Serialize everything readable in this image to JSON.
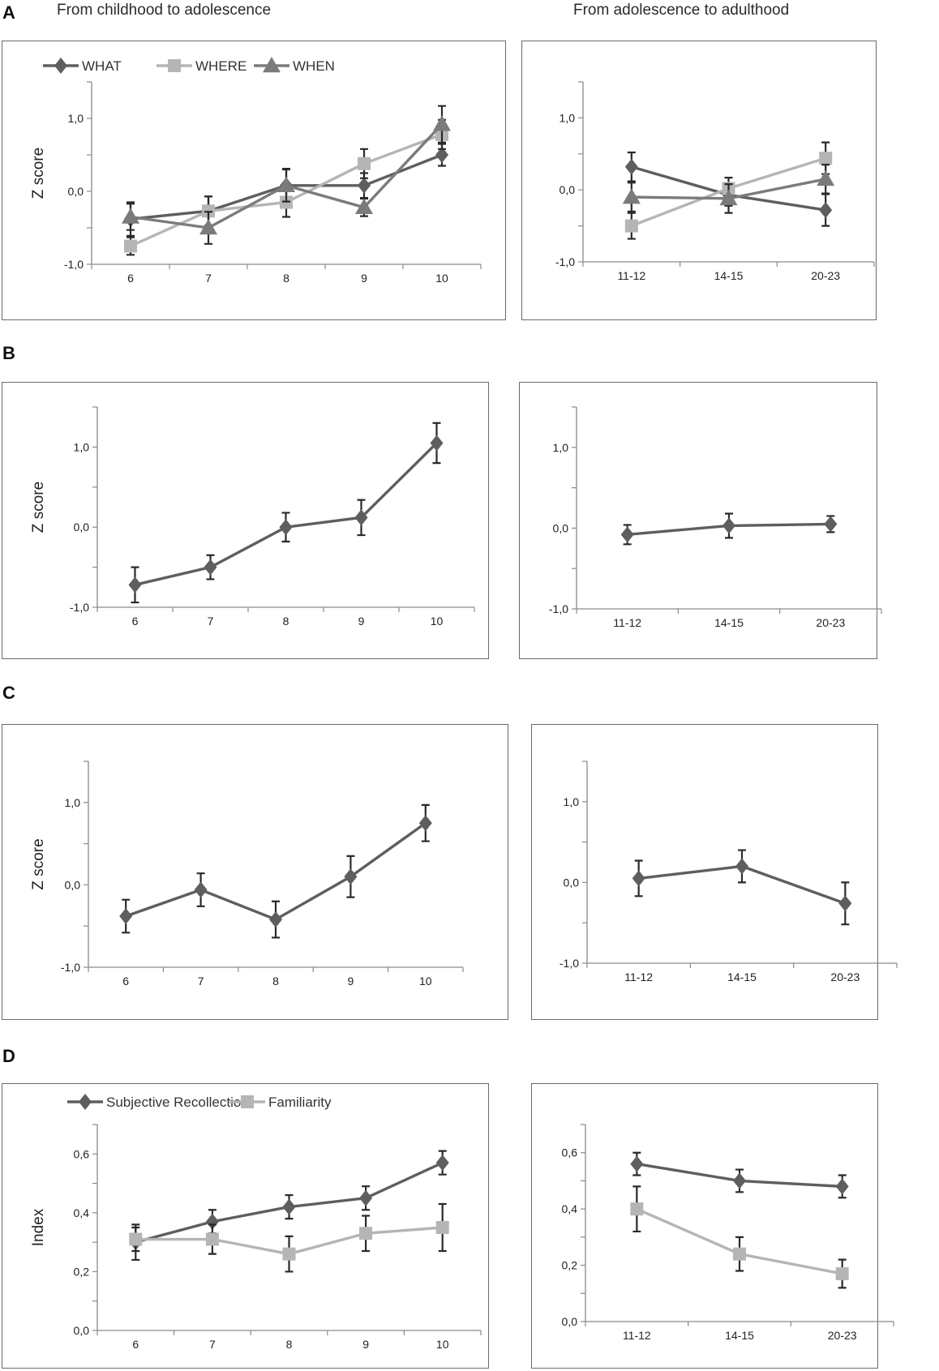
{
  "header": {
    "left_title": "From childhood to adolescence",
    "right_title": "From adolescence to adulthood"
  },
  "sections": {
    "a": "A",
    "b": "B",
    "c": "C",
    "d": "D"
  },
  "colors": {
    "dark": "#5e5e5e",
    "light": "#b5b5b5",
    "mid": "#7b7b7b",
    "axis": "#8a8a8a",
    "border": "#6a6a6a"
  },
  "chart_data": [
    {
      "id": "A-left",
      "type": "line",
      "ylabel": "Z score",
      "categories": [
        "6",
        "7",
        "8",
        "9",
        "10"
      ],
      "ylim": [
        -1.0,
        1.5
      ],
      "yticks": [
        {
          "v": -1.0,
          "label": "-1,0"
        },
        {
          "v": 0.0,
          "label": "0,0"
        },
        {
          "v": 1.0,
          "label": "1,0"
        }
      ],
      "legend": true,
      "series": [
        {
          "name": "WHAT",
          "marker": "diamond",
          "color": "#5e5e5e",
          "values": [
            -0.38,
            -0.27,
            0.08,
            0.08,
            0.5
          ],
          "err": [
            0.23,
            0.2,
            0.23,
            0.17,
            0.15
          ]
        },
        {
          "name": "WHERE",
          "marker": "square",
          "color": "#b5b5b5",
          "values": [
            -0.75,
            -0.27,
            -0.15,
            0.38,
            0.78
          ],
          "err": [
            0.12,
            0.2,
            0.2,
            0.2,
            0.2
          ]
        },
        {
          "name": "WHEN",
          "marker": "triangle",
          "color": "#7b7b7b",
          "values": [
            -0.35,
            -0.5,
            0.08,
            -0.22,
            0.92
          ],
          "err": [
            0.18,
            0.22,
            0.22,
            0.12,
            0.25
          ]
        }
      ]
    },
    {
      "id": "A-right",
      "type": "line",
      "ylabel": "",
      "categories": [
        "11-12",
        "14-15",
        "20-23"
      ],
      "ylim": [
        -1.0,
        1.5
      ],
      "yticks": [
        {
          "v": -1.0,
          "label": "-1,0"
        },
        {
          "v": 0.0,
          "label": "0,0"
        },
        {
          "v": 1.0,
          "label": "1,0"
        }
      ],
      "legend": false,
      "series": [
        {
          "name": "WHAT",
          "marker": "diamond",
          "color": "#5e5e5e",
          "values": [
            0.32,
            -0.07,
            -0.28
          ],
          "err": [
            0.2,
            0.15,
            0.22
          ]
        },
        {
          "name": "WHERE",
          "marker": "square",
          "color": "#b5b5b5",
          "values": [
            -0.5,
            0.02,
            0.44
          ],
          "err": [
            0.18,
            0.15,
            0.22
          ]
        },
        {
          "name": "WHEN",
          "marker": "triangle",
          "color": "#7b7b7b",
          "values": [
            -0.1,
            -0.12,
            0.15
          ],
          "err": [
            0.2,
            0.2,
            0.2
          ]
        }
      ]
    },
    {
      "id": "B-left",
      "type": "line",
      "ylabel": "Z score",
      "categories": [
        "6",
        "7",
        "8",
        "9",
        "10"
      ],
      "ylim": [
        -1.0,
        1.5
      ],
      "yticks": [
        {
          "v": -1.0,
          "label": "-1,0"
        },
        {
          "v": 0.0,
          "label": "0,0"
        },
        {
          "v": 1.0,
          "label": "1,0"
        }
      ],
      "legend": false,
      "series": [
        {
          "name": "B",
          "marker": "diamond",
          "color": "#5e5e5e",
          "values": [
            -0.72,
            -0.5,
            0.0,
            0.12,
            1.05
          ],
          "err": [
            0.22,
            0.15,
            0.18,
            0.22,
            0.25
          ]
        }
      ]
    },
    {
      "id": "B-right",
      "type": "line",
      "ylabel": "",
      "categories": [
        "11-12",
        "14-15",
        "20-23"
      ],
      "ylim": [
        -1.0,
        1.5
      ],
      "yticks": [
        {
          "v": -1.0,
          "label": "-1,0"
        },
        {
          "v": 0.0,
          "label": "0,0"
        },
        {
          "v": 1.0,
          "label": "1,0"
        }
      ],
      "legend": false,
      "series": [
        {
          "name": "B",
          "marker": "diamond",
          "color": "#5e5e5e",
          "values": [
            -0.08,
            0.03,
            0.05
          ],
          "err": [
            0.12,
            0.15,
            0.1
          ]
        }
      ]
    },
    {
      "id": "C-left",
      "type": "line",
      "ylabel": "Z score",
      "categories": [
        "6",
        "7",
        "8",
        "9",
        "10"
      ],
      "ylim": [
        -1.0,
        1.5
      ],
      "yticks": [
        {
          "v": -1.0,
          "label": "-1,0"
        },
        {
          "v": 0.0,
          "label": "0,0"
        },
        {
          "v": 1.0,
          "label": "1,0"
        }
      ],
      "legend": false,
      "series": [
        {
          "name": "C",
          "marker": "diamond",
          "color": "#5e5e5e",
          "values": [
            -0.38,
            -0.06,
            -0.42,
            0.1,
            0.75
          ],
          "err": [
            0.2,
            0.2,
            0.22,
            0.25,
            0.22
          ]
        }
      ]
    },
    {
      "id": "C-right",
      "type": "line",
      "ylabel": "",
      "categories": [
        "11-12",
        "14-15",
        "20-23"
      ],
      "ylim": [
        -1.0,
        1.5
      ],
      "yticks": [
        {
          "v": -1.0,
          "label": "-1,0"
        },
        {
          "v": 0.0,
          "label": "0,0"
        },
        {
          "v": 1.0,
          "label": "1,0"
        }
      ],
      "legend": false,
      "series": [
        {
          "name": "C",
          "marker": "diamond",
          "color": "#5e5e5e",
          "values": [
            0.05,
            0.2,
            -0.26
          ],
          "err": [
            0.22,
            0.2,
            0.26
          ]
        }
      ]
    },
    {
      "id": "D-left",
      "type": "line",
      "ylabel": "Index",
      "categories": [
        "6",
        "7",
        "8",
        "9",
        "10"
      ],
      "ylim": [
        0.0,
        0.7
      ],
      "yticks": [
        {
          "v": 0.0,
          "label": "0,0"
        },
        {
          "v": 0.2,
          "label": "0,2"
        },
        {
          "v": 0.4,
          "label": "0,4"
        },
        {
          "v": 0.6,
          "label": "0,6"
        }
      ],
      "legend": true,
      "series": [
        {
          "name": "Subjective Recollection",
          "marker": "diamond",
          "color": "#5e5e5e",
          "values": [
            0.3,
            0.37,
            0.42,
            0.45,
            0.57
          ],
          "err": [
            0.06,
            0.04,
            0.04,
            0.04,
            0.04
          ]
        },
        {
          "name": "Familiarity",
          "marker": "square",
          "color": "#b5b5b5",
          "values": [
            0.31,
            0.31,
            0.26,
            0.33,
            0.35
          ],
          "err": [
            0.04,
            0.05,
            0.06,
            0.06,
            0.08
          ]
        }
      ]
    },
    {
      "id": "D-right",
      "type": "line",
      "ylabel": "",
      "categories": [
        "11-12",
        "14-15",
        "20-23"
      ],
      "ylim": [
        0.0,
        0.7
      ],
      "yticks": [
        {
          "v": 0.0,
          "label": "0,0"
        },
        {
          "v": 0.2,
          "label": "0,2"
        },
        {
          "v": 0.4,
          "label": "0,4"
        },
        {
          "v": 0.6,
          "label": "0,6"
        }
      ],
      "legend": false,
      "series": [
        {
          "name": "Subjective Recollection",
          "marker": "diamond",
          "color": "#5e5e5e",
          "values": [
            0.56,
            0.5,
            0.48
          ],
          "err": [
            0.04,
            0.04,
            0.04
          ]
        },
        {
          "name": "Familiarity",
          "marker": "square",
          "color": "#b5b5b5",
          "values": [
            0.4,
            0.24,
            0.17
          ],
          "err": [
            0.08,
            0.06,
            0.05
          ]
        }
      ]
    }
  ]
}
